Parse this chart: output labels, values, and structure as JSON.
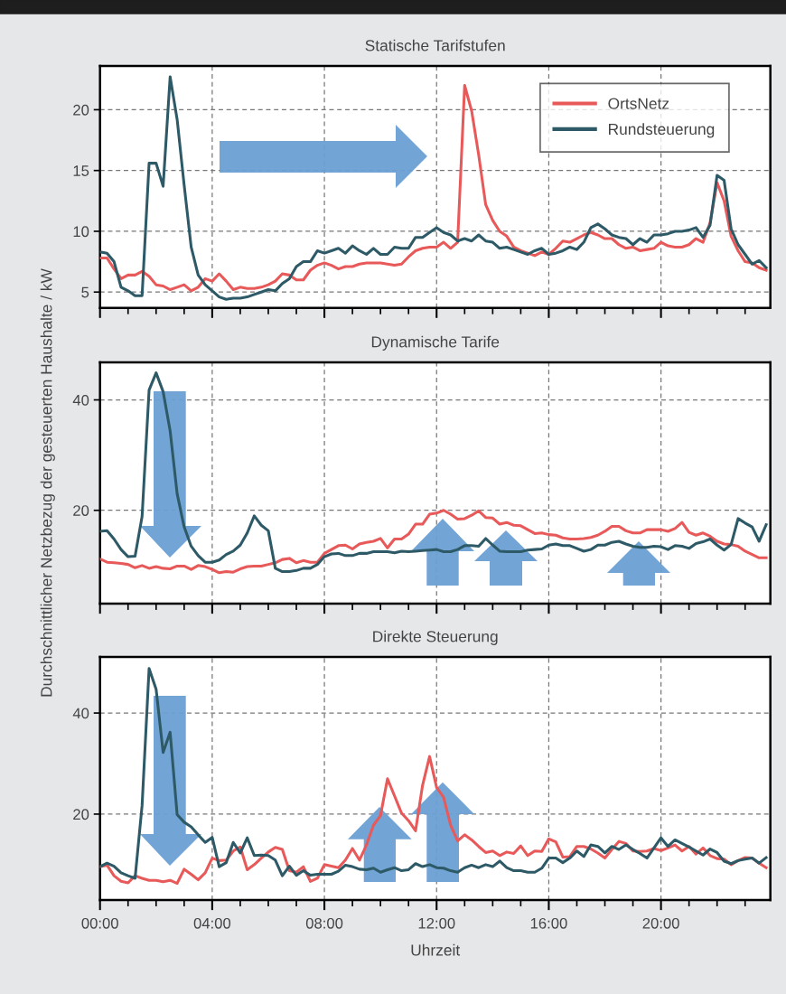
{
  "chart_data": [
    {
      "type": "line",
      "title": "Statische Tarifstufen",
      "legend": "top right",
      "grid": true,
      "tick_labels": "y",
      "marker": "none",
      "line_style": "solid",
      "x": [
        0,
        0.25,
        0.5,
        0.75,
        1,
        1.25,
        1.5,
        1.75,
        2,
        2.25,
        2.5,
        2.75,
        3,
        3.25,
        3.5,
        3.75,
        4,
        4.25,
        4.5,
        4.75,
        5,
        5.25,
        5.5,
        5.75,
        6,
        6.25,
        6.5,
        6.75,
        7,
        7.25,
        7.5,
        7.75,
        8,
        8.25,
        8.5,
        8.75,
        9,
        9.25,
        9.5,
        9.75,
        10,
        10.25,
        10.5,
        10.75,
        11,
        11.25,
        11.5,
        11.75,
        12,
        12.25,
        12.5,
        12.75,
        13,
        13.25,
        13.5,
        13.75,
        14,
        14.25,
        14.5,
        14.75,
        15,
        15.25,
        15.5,
        15.75,
        16,
        16.25,
        16.5,
        16.75,
        17,
        17.25,
        17.5,
        17.75,
        18,
        18.25,
        18.5,
        18.75,
        19,
        19.25,
        19.5,
        19.75,
        20,
        20.25,
        20.5,
        20.75,
        21,
        21.25,
        21.5,
        21.75,
        22,
        22.25,
        22.5,
        22.75,
        23,
        23.25,
        23.5,
        23.75
      ],
      "xlim": [
        0,
        23.9
      ],
      "ylim": [
        3.7,
        23.6
      ],
      "yticks": [
        5,
        10,
        15,
        20
      ],
      "series": [
        {
          "name": "OrtsNetz",
          "color": "#e8595a",
          "values": [
            7.8,
            7.8,
            6.9,
            6.1,
            6.4,
            6.4,
            6.7,
            6.3,
            5.6,
            5.5,
            5.2,
            5.4,
            5.6,
            5.1,
            5.4,
            6.1,
            5.9,
            6.5,
            5.9,
            5.2,
            5.4,
            5.3,
            5.3,
            5.4,
            5.6,
            5.9,
            6.5,
            6.4,
            6.0,
            6.0,
            6.8,
            7.2,
            7.4,
            7.2,
            6.9,
            7.1,
            7.1,
            7.3,
            7.4,
            7.4,
            7.4,
            7.3,
            7.2,
            7.3,
            7.9,
            8.4,
            8.6,
            8.7,
            8.7,
            9.1,
            8.6,
            9.1,
            22.0,
            19.9,
            16.3,
            12.2,
            10.9,
            10.0,
            9.6,
            8.7,
            8.4,
            8.2,
            8.0,
            8.3,
            8.1,
            8.6,
            9.2,
            9.1,
            9.4,
            9.7,
            9.9,
            9.7,
            9.4,
            9.4,
            8.9,
            8.6,
            8.7,
            8.4,
            8.5,
            8.6,
            9.1,
            8.8,
            8.7,
            8.7,
            8.9,
            9.4,
            9.1,
            10.7,
            14.0,
            12.5,
            9.6,
            8.4,
            7.5,
            7.4,
            7.0,
            6.8
          ]
        },
        {
          "name": "Rundsteuerung",
          "color": "#2d5a66",
          "values": [
            8.3,
            8.2,
            7.5,
            5.4,
            5.1,
            4.7,
            4.7,
            15.6,
            15.6,
            13.7,
            22.7,
            19.2,
            13.8,
            8.7,
            6.4,
            5.6,
            5.1,
            4.6,
            4.4,
            4.5,
            4.5,
            4.6,
            4.8,
            5.0,
            5.2,
            5.1,
            5.7,
            6.1,
            7.1,
            7.5,
            7.5,
            8.4,
            8.2,
            8.4,
            8.6,
            8.2,
            8.8,
            8.4,
            8.1,
            8.6,
            8.1,
            8.1,
            8.7,
            8.6,
            8.6,
            9.5,
            9.5,
            9.9,
            10.3,
            9.9,
            9.7,
            9.2,
            9.4,
            9.2,
            9.7,
            9.2,
            9.1,
            8.6,
            8.7,
            8.5,
            8.3,
            8.1,
            8.4,
            8.6,
            8.1,
            8.2,
            8.4,
            8.7,
            8.5,
            9.1,
            10.3,
            10.6,
            10.2,
            9.7,
            9.5,
            9.4,
            8.9,
            9.4,
            9.1,
            9.7,
            9.7,
            9.8,
            10.0,
            10.0,
            10.1,
            10.3,
            9.5,
            10.5,
            14.6,
            14.2,
            10.2,
            8.9,
            8.1,
            7.3,
            7.6,
            7.0
          ]
        }
      ]
    },
    {
      "type": "line",
      "title": "Dynamische Tarife",
      "ylabel": "Durchschnittlicher Netzbezug der gesteuerten Haushalte / kW",
      "grid": true,
      "tick_labels": "y",
      "marker": "none",
      "line_style": "solid",
      "x": [
        0,
        0.25,
        0.5,
        0.75,
        1,
        1.25,
        1.5,
        1.75,
        2,
        2.25,
        2.5,
        2.75,
        3,
        3.25,
        3.5,
        3.75,
        4,
        4.25,
        4.5,
        4.75,
        5,
        5.25,
        5.5,
        5.75,
        6,
        6.25,
        6.5,
        6.75,
        7,
        7.25,
        7.5,
        7.75,
        8,
        8.25,
        8.5,
        8.75,
        9,
        9.25,
        9.5,
        9.75,
        10,
        10.25,
        10.5,
        10.75,
        11,
        11.25,
        11.5,
        11.75,
        12,
        12.25,
        12.5,
        12.75,
        13,
        13.25,
        13.5,
        13.75,
        14,
        14.25,
        14.5,
        14.75,
        15,
        15.25,
        15.5,
        15.75,
        16,
        16.25,
        16.5,
        16.75,
        17,
        17.25,
        17.5,
        17.75,
        18,
        18.25,
        18.5,
        18.75,
        19,
        19.25,
        19.5,
        19.75,
        20,
        20.25,
        20.5,
        20.75,
        21,
        21.25,
        21.5,
        21.75,
        22,
        22.25,
        22.5,
        22.75,
        23,
        23.25,
        23.5,
        23.75
      ],
      "xlim": [
        0,
        23.9
      ],
      "ylim": [
        3.1,
        46.8
      ],
      "yticks": [
        20,
        40
      ],
      "series": [
        {
          "color": "#e8595a",
          "values": [
            11.2,
            10.6,
            10.5,
            10.4,
            10.2,
            9.6,
            10.0,
            9.5,
            9.8,
            9.5,
            9.4,
            9.9,
            9.9,
            9.3,
            10.0,
            9.8,
            9.3,
            8.7,
            8.9,
            8.8,
            9.4,
            9.8,
            9.9,
            9.9,
            10.2,
            10.5,
            11.1,
            11.3,
            10.5,
            10.9,
            10.6,
            10.6,
            12.2,
            12.9,
            13.6,
            13.7,
            13.0,
            13.9,
            14.2,
            14.4,
            14.9,
            13.2,
            14.8,
            14.8,
            15.7,
            17.5,
            17.5,
            19.3,
            19.5,
            20.0,
            19.3,
            18.4,
            18.5,
            19.1,
            19.9,
            18.7,
            18.6,
            17.5,
            17.8,
            17.3,
            17.2,
            16.5,
            15.8,
            15.9,
            15.6,
            15.5,
            15.0,
            14.8,
            14.8,
            14.9,
            15.1,
            15.5,
            16.2,
            17.1,
            17.1,
            16.3,
            15.9,
            15.9,
            16.5,
            16.5,
            16.5,
            16.2,
            16.7,
            17.8,
            16.0,
            15.5,
            15.9,
            15.3,
            14.4,
            13.9,
            13.8,
            13.5,
            12.6,
            12.0,
            11.4,
            11.4
          ]
        },
        {
          "color": "#2d5a66",
          "values": [
            16.2,
            16.3,
            14.8,
            12.9,
            11.6,
            11.7,
            18.9,
            41.8,
            44.9,
            41.5,
            34.4,
            23.0,
            17.0,
            13.5,
            11.8,
            10.6,
            10.6,
            11.0,
            12.0,
            12.6,
            13.7,
            15.9,
            19.0,
            17.3,
            16.3,
            9.5,
            8.9,
            8.9,
            9.1,
            9.5,
            9.5,
            10.2,
            11.6,
            12.1,
            12.2,
            11.8,
            11.8,
            12.2,
            12.2,
            12.5,
            12.5,
            12.5,
            12.3,
            12.6,
            12.5,
            12.6,
            12.7,
            12.8,
            12.9,
            12.5,
            12.5,
            12.9,
            13.6,
            13.6,
            13.5,
            14.9,
            13.7,
            12.6,
            12.5,
            12.5,
            12.5,
            12.8,
            12.9,
            13.0,
            13.7,
            13.9,
            13.6,
            13.6,
            13.1,
            12.6,
            12.9,
            13.7,
            13.7,
            14.2,
            14.4,
            13.9,
            13.5,
            13.3,
            13.3,
            13.5,
            13.4,
            12.9,
            13.6,
            13.5,
            13.1,
            14.0,
            14.3,
            14.8,
            13.7,
            12.8,
            13.8,
            18.5,
            17.7,
            17.0,
            14.4,
            17.4
          ]
        }
      ]
    },
    {
      "type": "line",
      "title": "Direkte Steuerung",
      "xlabel": "Uhrzeit",
      "grid": true,
      "marker": "none",
      "line_style": "solid",
      "x": [
        0,
        0.25,
        0.5,
        0.75,
        1,
        1.25,
        1.5,
        1.75,
        2,
        2.25,
        2.5,
        2.75,
        3,
        3.25,
        3.5,
        3.75,
        4,
        4.25,
        4.5,
        4.75,
        5,
        5.25,
        5.5,
        5.75,
        6,
        6.25,
        6.5,
        6.75,
        7,
        7.25,
        7.5,
        7.75,
        8,
        8.25,
        8.5,
        8.75,
        9,
        9.25,
        9.5,
        9.75,
        10,
        10.25,
        10.5,
        10.75,
        11,
        11.25,
        11.5,
        11.75,
        12,
        12.25,
        12.5,
        12.75,
        13,
        13.25,
        13.5,
        13.75,
        14,
        14.25,
        14.5,
        14.75,
        15,
        15.25,
        15.5,
        15.75,
        16,
        16.25,
        16.5,
        16.75,
        17,
        17.25,
        17.5,
        17.75,
        18,
        18.25,
        18.5,
        18.75,
        19,
        19.25,
        19.5,
        19.75,
        20,
        20.25,
        20.5,
        20.75,
        21,
        21.25,
        21.5,
        21.75,
        22,
        22.25,
        22.5,
        22.75,
        23,
        23.25,
        23.5,
        23.75
      ],
      "xlim": [
        0,
        23.9
      ],
      "ylim": [
        3.0,
        51.1
      ],
      "yticks": [
        20,
        40
      ],
      "xticks": [
        {
          "value": 0,
          "label": "00:00"
        },
        {
          "value": 1,
          "label": null
        },
        {
          "value": 2,
          "label": null
        },
        {
          "value": 3,
          "label": null
        },
        {
          "value": 4,
          "label": "04:00"
        },
        {
          "value": 5,
          "label": null
        },
        {
          "value": 6,
          "label": null
        },
        {
          "value": 7,
          "label": null
        },
        {
          "value": 8,
          "label": "08:00"
        },
        {
          "value": 9,
          "label": null
        },
        {
          "value": 10,
          "label": null
        },
        {
          "value": 11,
          "label": null
        },
        {
          "value": 12,
          "label": "12:00"
        },
        {
          "value": 13,
          "label": null
        },
        {
          "value": 14,
          "label": null
        },
        {
          "value": 15,
          "label": null
        },
        {
          "value": 16,
          "label": "16:00"
        },
        {
          "value": 17,
          "label": null
        },
        {
          "value": 18,
          "label": null
        },
        {
          "value": 19,
          "label": null
        },
        {
          "value": 20,
          "label": "20:00"
        },
        {
          "value": 21,
          "label": null
        },
        {
          "value": 22,
          "label": null
        },
        {
          "value": 23,
          "label": null
        }
      ],
      "series": [
        {
          "color": "#e8595a",
          "values": [
            9.6,
            9.9,
            7.8,
            6.7,
            6.4,
            7.8,
            7.3,
            6.9,
            6.9,
            6.6,
            6.9,
            6.3,
            9.1,
            8.1,
            7.0,
            8.4,
            11.3,
            10.8,
            10.9,
            12.7,
            13.5,
            9.0,
            10.0,
            11.3,
            12.5,
            13.4,
            13.0,
            8.8,
            8.5,
            9.6,
            6.7,
            7.3,
            10.0,
            9.7,
            9.4,
            10.9,
            13.2,
            10.9,
            13.9,
            17.8,
            19.7,
            27.0,
            23.6,
            20.2,
            18.7,
            16.7,
            25.7,
            31.4,
            25.3,
            23.3,
            17.8,
            14.7,
            15.9,
            14.9,
            13.6,
            12.4,
            12.7,
            11.8,
            12.5,
            12.2,
            13.7,
            11.8,
            12.7,
            12.6,
            15.1,
            14.5,
            11.5,
            11.6,
            13.6,
            13.6,
            13.1,
            12.3,
            11.3,
            13.0,
            14.6,
            14.2,
            12.7,
            12.6,
            12.7,
            13.2,
            12.8,
            13.3,
            13.9,
            12.7,
            13.6,
            12.1,
            13.3,
            11.8,
            11.2,
            11.1,
            10.0,
            10.8,
            11.4,
            11.3,
            10.3,
            9.4
          ]
        },
        {
          "color": "#2d5a66",
          "values": [
            9.6,
            10.3,
            9.7,
            8.4,
            7.8,
            7.3,
            21.7,
            48.8,
            44.7,
            32.2,
            36.2,
            19.9,
            18.4,
            17.5,
            15.9,
            14.4,
            15.4,
            9.6,
            10.4,
            14.4,
            12.3,
            15.3,
            11.8,
            11.9,
            11.8,
            10.9,
            7.8,
            9.7,
            7.9,
            8.8,
            7.9,
            8.1,
            8.1,
            8.1,
            8.7,
            9.9,
            9.6,
            9.1,
            9.0,
            9.3,
            8.5,
            9.0,
            9.4,
            8.8,
            9.0,
            10.2,
            9.6,
            10.0,
            9.4,
            9.3,
            8.8,
            8.5,
            9.4,
            9.9,
            9.4,
            10.0,
            9.6,
            10.7,
            9.4,
            8.8,
            8.8,
            8.5,
            8.5,
            9.3,
            11.3,
            11.3,
            10.4,
            11.3,
            12.7,
            11.6,
            13.9,
            13.6,
            12.3,
            13.6,
            13.0,
            13.9,
            13.0,
            12.2,
            11.3,
            13.3,
            15.3,
            13.6,
            14.9,
            14.2,
            13.5,
            12.7,
            11.9,
            13.1,
            12.4,
            10.7,
            10.2,
            10.8,
            11.1,
            11.3,
            10.3,
            11.4
          ]
        }
      ]
    }
  ]
}
